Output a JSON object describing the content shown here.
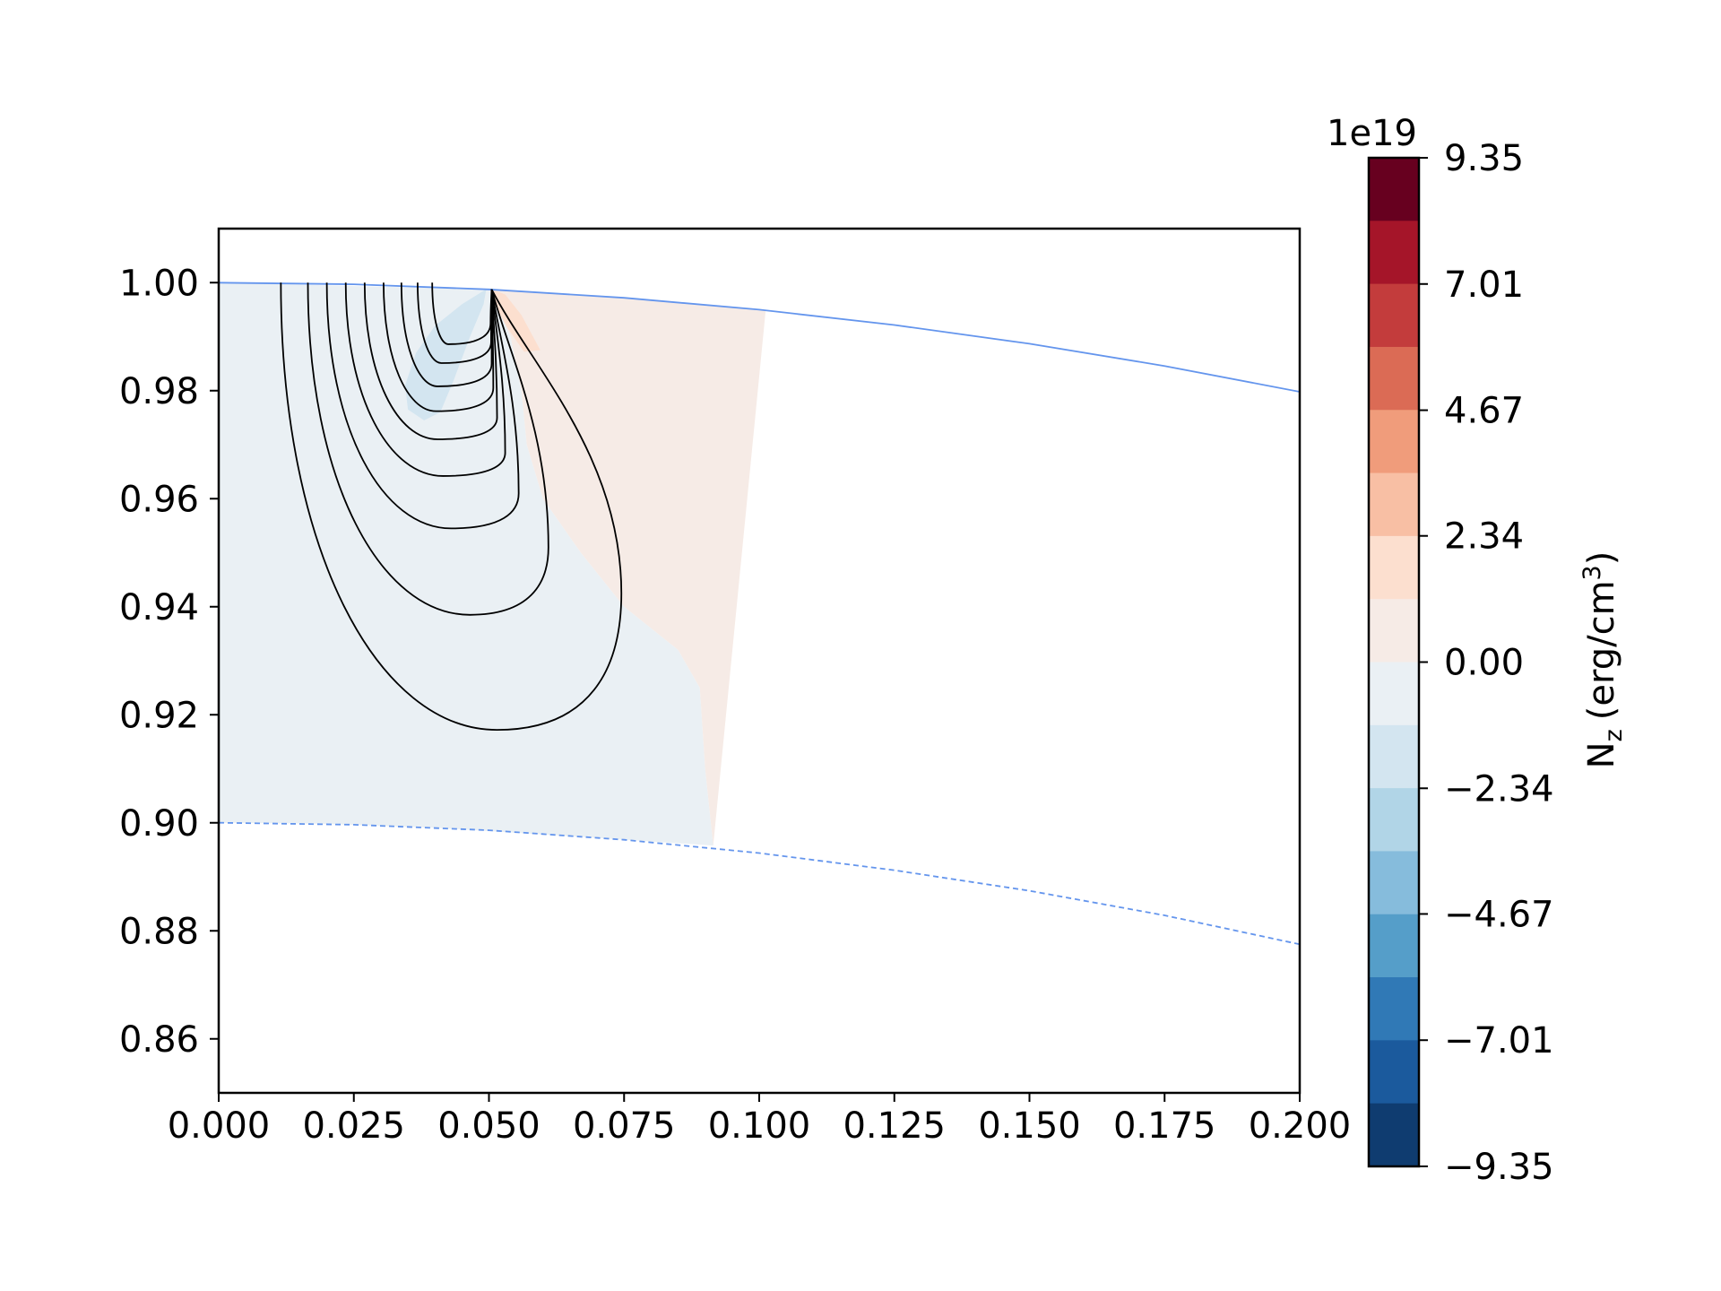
{
  "chart_data": {
    "type": "contour",
    "x_ticks": [
      "0.000",
      "0.025",
      "0.050",
      "0.075",
      "0.100",
      "0.125",
      "0.150",
      "0.175",
      "0.200"
    ],
    "y_ticks": [
      "0.86",
      "0.88",
      "0.90",
      "0.92",
      "0.94",
      "0.96",
      "0.98",
      "1.00"
    ],
    "xlim": [
      0.0,
      0.2
    ],
    "ylim": [
      0.85,
      1.01
    ],
    "grid": false,
    "xlabel": "",
    "ylabel": "",
    "title": "",
    "colorbar": {
      "label": "N",
      "label_sub": "z",
      "label_unit": "(erg/cm",
      "label_sup": "3",
      "label_close": ")",
      "offset_text": "1e19",
      "range": [
        -9.35,
        9.35
      ],
      "tick_labels": [
        "9.35",
        "7.01",
        "4.67",
        "2.34",
        "0.00",
        "−2.34",
        "−4.67",
        "−7.01",
        "−9.35"
      ],
      "tick_values": [
        9.35,
        7.01,
        4.67,
        2.34,
        0.0,
        -2.34,
        -4.67,
        -7.01,
        -9.35
      ],
      "levels_top_to_bottom": [
        "#67001f",
        "#a51529",
        "#c33c3c",
        "#db6b55",
        "#f09c7b",
        "#f8bfa4",
        "#fcdfcf",
        "#f6ebe6",
        "#eaf0f4",
        "#d3e5f0",
        "#b1d5e7",
        "#86bcdc",
        "#559ec9",
        "#3079b6",
        "#1b5a9d",
        "#0f3c70"
      ]
    },
    "boundaries": {
      "outer": {
        "style": "solid",
        "color": "#6495ed",
        "points": [
          [
            0.0,
            1.0
          ],
          [
            0.025,
            0.99969
          ],
          [
            0.05,
            0.99875
          ],
          [
            0.075,
            0.99718
          ],
          [
            0.1,
            0.99499
          ],
          [
            0.125,
            0.99216
          ],
          [
            0.15,
            0.98869
          ],
          [
            0.175,
            0.98457
          ],
          [
            0.2,
            0.9798
          ]
        ]
      },
      "inner": {
        "style": "dashed",
        "color": "#6495ed",
        "points": [
          [
            0.0,
            0.9
          ],
          [
            0.025,
            0.89965
          ],
          [
            0.05,
            0.89861
          ],
          [
            0.075,
            0.89686
          ],
          [
            0.1,
            0.8944
          ],
          [
            0.125,
            0.89121
          ],
          [
            0.15,
            0.88741
          ],
          [
            0.175,
            0.88287
          ],
          [
            0.2,
            0.8775
          ]
        ]
      }
    },
    "filled_regions": [
      {
        "level": "0 to -2.34",
        "color": "#eaf0f4",
        "points": [
          [
            0.0,
            1.0
          ],
          [
            0.05,
            0.99875
          ],
          [
            0.054,
            0.99
          ],
          [
            0.056,
            0.98
          ],
          [
            0.057,
            0.97
          ],
          [
            0.06,
            0.96
          ],
          [
            0.067,
            0.95
          ],
          [
            0.075,
            0.94
          ],
          [
            0.085,
            0.932
          ],
          [
            0.089,
            0.925
          ],
          [
            0.09,
            0.91
          ],
          [
            0.0915,
            0.8958
          ],
          [
            0.07,
            0.8972
          ],
          [
            0.04,
            0.8991
          ],
          [
            0.02,
            0.8998
          ],
          [
            0.0,
            0.9
          ]
        ]
      },
      {
        "level": "0 to 2.34",
        "color": "#f6ebe6",
        "points": [
          [
            0.05,
            0.99875
          ],
          [
            0.075,
            0.99718
          ],
          [
            0.1012,
            0.99485
          ],
          [
            0.0915,
            0.8958
          ],
          [
            0.09,
            0.91
          ],
          [
            0.089,
            0.925
          ],
          [
            0.085,
            0.932
          ],
          [
            0.075,
            0.94
          ],
          [
            0.067,
            0.95
          ],
          [
            0.06,
            0.96
          ],
          [
            0.057,
            0.97
          ],
          [
            0.056,
            0.98
          ],
          [
            0.054,
            0.99
          ]
        ]
      },
      {
        "level": "2.34 to 4.67",
        "color": "#fcdfcf",
        "points": [
          [
            0.0504,
            0.9988
          ],
          [
            0.053,
            0.9978
          ],
          [
            0.056,
            0.994
          ],
          [
            0.0595,
            0.9875
          ],
          [
            0.0565,
            0.9872
          ],
          [
            0.0535,
            0.9915
          ],
          [
            0.051,
            0.996
          ]
        ]
      },
      {
        "level": "-2.34 to -4.67",
        "color": "#d3e5f0",
        "points": [
          [
            0.0495,
            0.9988
          ],
          [
            0.045,
            0.996
          ],
          [
            0.04,
            0.992
          ],
          [
            0.0365,
            0.987
          ],
          [
            0.0345,
            0.981
          ],
          [
            0.035,
            0.9765
          ],
          [
            0.038,
            0.9745
          ],
          [
            0.041,
            0.976
          ],
          [
            0.0435,
            0.982
          ],
          [
            0.0465,
            0.99
          ],
          [
            0.049,
            0.996
          ]
        ]
      }
    ],
    "field_lines": {
      "color": "#000000",
      "source": [
        0.0505,
        0.99875
      ],
      "loops": [
        {
          "start_x": 0.0115,
          "bottom_x": 0.0515,
          "bottom_y": 0.9172,
          "right_x": 0.0745,
          "right_y": 0.9425
        },
        {
          "start_x": 0.0165,
          "bottom_x": 0.0465,
          "bottom_y": 0.9385,
          "right_x": 0.061,
          "right_y": 0.951
        },
        {
          "start_x": 0.02,
          "bottom_x": 0.043,
          "bottom_y": 0.9545,
          "right_x": 0.0555,
          "right_y": 0.961
        },
        {
          "start_x": 0.0235,
          "bottom_x": 0.0415,
          "bottom_y": 0.9642,
          "right_x": 0.053,
          "right_y": 0.9685
        },
        {
          "start_x": 0.027,
          "bottom_x": 0.0405,
          "bottom_y": 0.971,
          "right_x": 0.0515,
          "right_y": 0.975
        },
        {
          "start_x": 0.0305,
          "bottom_x": 0.0402,
          "bottom_y": 0.9762,
          "right_x": 0.0508,
          "right_y": 0.9805
        },
        {
          "start_x": 0.0338,
          "bottom_x": 0.0405,
          "bottom_y": 0.9808,
          "right_x": 0.0505,
          "right_y": 0.985
        },
        {
          "start_x": 0.0368,
          "bottom_x": 0.0412,
          "bottom_y": 0.9851,
          "right_x": 0.0504,
          "right_y": 0.989
        },
        {
          "start_x": 0.0395,
          "bottom_x": 0.0425,
          "bottom_y": 0.9886,
          "right_x": 0.0503,
          "right_y": 0.9925
        }
      ]
    }
  }
}
